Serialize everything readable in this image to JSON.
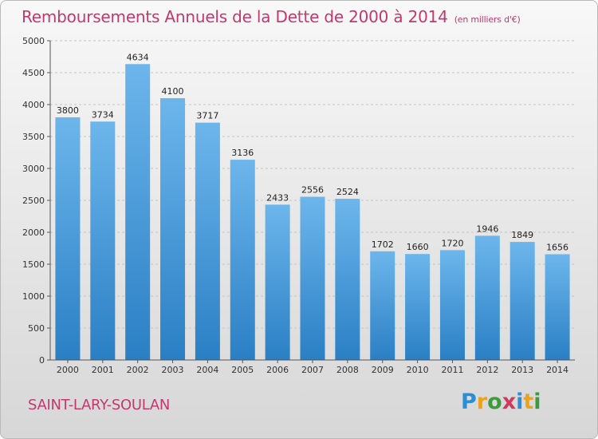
{
  "header": {
    "title": "Remboursements Annuels de la Dette de 2000 à 2014",
    "unit": "(en milliers d'€)"
  },
  "footer": {
    "place": "SAINT-LARY-SOULAN",
    "logo": [
      "P",
      "r",
      "o",
      "x",
      "i",
      "t",
      "i"
    ],
    "logo_colors": [
      "#2a8fd6",
      "#e8a320",
      "#3d9b3d",
      "#d03a5c",
      "#2a8fd6",
      "#e8a320",
      "#3d9b3d"
    ]
  },
  "colors": {
    "bar_top": "#6db6ec",
    "bar_bottom": "#2a7fc4",
    "title": "#c2396e"
  },
  "chart_data": {
    "type": "bar",
    "categories": [
      "2000",
      "2001",
      "2002",
      "2003",
      "2004",
      "2005",
      "2006",
      "2007",
      "2008",
      "2009",
      "2010",
      "2011",
      "2012",
      "2013",
      "2014"
    ],
    "values": [
      3800,
      3734,
      4634,
      4100,
      3717,
      3136,
      2433,
      2556,
      2524,
      1702,
      1660,
      1720,
      1946,
      1849,
      1656
    ],
    "yticks": [
      0,
      500,
      1000,
      1500,
      2000,
      2500,
      3000,
      3500,
      4000,
      4500,
      5000
    ],
    "ylim": [
      0,
      5000
    ],
    "grid": true
  }
}
